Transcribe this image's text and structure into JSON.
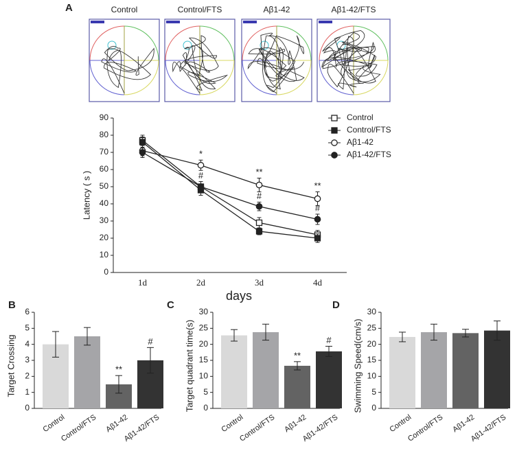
{
  "swim_paths": {
    "panel": "A",
    "labels": [
      "Control",
      "Control/FTS",
      "Aβ1-42",
      "Aβ1-42/FTS"
    ]
  },
  "chart_data": [
    {
      "type": "line",
      "x_label": "days",
      "y_label": "Latency ( s )",
      "categories": [
        "1d",
        "2d",
        "3d",
        "4d"
      ],
      "ylim": [
        0,
        90
      ],
      "yticks": [
        0,
        10,
        20,
        30,
        40,
        50,
        60,
        70,
        80,
        90
      ],
      "series": [
        {
          "name": "Control",
          "color": "#222222",
          "marker": "square-open",
          "values": [
            77,
            50,
            29,
            22
          ],
          "errors": [
            3,
            3,
            3,
            2.5
          ]
        },
        {
          "name": "Control/FTS",
          "color": "#222222",
          "marker": "square-filled",
          "values": [
            76,
            48,
            24,
            20
          ],
          "errors": [
            3,
            3,
            2,
            2.5
          ]
        },
        {
          "name": "Aβ1-42",
          "color": "#222222",
          "marker": "circle-open",
          "values": [
            71,
            62.5,
            51,
            43
          ],
          "errors": [
            3,
            3,
            4,
            4
          ]
        },
        {
          "name": "Aβ1-42/FTS",
          "color": "#222222",
          "marker": "circle-filled",
          "values": [
            70,
            50,
            38.5,
            31
          ],
          "errors": [
            3,
            3,
            2.5,
            3
          ]
        }
      ],
      "annotations": [
        {
          "text": "*",
          "x": "2d",
          "series": "Aβ1-42"
        },
        {
          "text": "**",
          "x": "3d",
          "series": "Aβ1-42"
        },
        {
          "text": "**",
          "x": "4d",
          "series": "Aβ1-42"
        },
        {
          "text": "#",
          "x": "2d",
          "series": "Aβ1-42/FTS"
        },
        {
          "text": "#",
          "x": "3d",
          "series": "Aβ1-42/FTS"
        },
        {
          "text": "#",
          "x": "4d",
          "series": "Aβ1-42/FTS"
        }
      ]
    },
    {
      "type": "bar",
      "panel": "B",
      "y_label": "Target Crossing",
      "categories": [
        "Control",
        "Control/FTS",
        "Aβ1-42",
        "Aβ1-42/FTS"
      ],
      "colors": [
        "#d9d9d9",
        "#a5a5a8",
        "#636363",
        "#333333"
      ],
      "values": [
        4.0,
        4.5,
        1.5,
        3.0
      ],
      "errors": [
        0.8,
        0.55,
        0.55,
        0.8
      ],
      "ylim": [
        0,
        6
      ],
      "yticks": [
        0,
        1,
        2,
        3,
        4,
        5,
        6
      ],
      "annotations": [
        {
          "text": "**",
          "x": "Aβ1-42"
        },
        {
          "text": "#",
          "x": "Aβ1-42/FTS"
        }
      ]
    },
    {
      "type": "bar",
      "panel": "C",
      "y_label": "Target quadrant time(s)",
      "categories": [
        "Control",
        "Control/FTS",
        "Aβ1-42",
        "Aβ1-42/FTS"
      ],
      "colors": [
        "#d9d9d9",
        "#a5a5a8",
        "#636363",
        "#333333"
      ],
      "values": [
        22.8,
        23.8,
        13.3,
        17.8
      ],
      "errors": [
        1.8,
        2.5,
        1.3,
        1.6
      ],
      "ylim": [
        0,
        30
      ],
      "yticks": [
        0,
        5,
        10,
        15,
        20,
        25,
        30
      ],
      "annotations": [
        {
          "text": "**",
          "x": "Aβ1-42"
        },
        {
          "text": "#",
          "x": "Aβ1-42/FTS"
        }
      ]
    },
    {
      "type": "bar",
      "panel": "D",
      "y_label": "Swimming Speed(cm/s)",
      "categories": [
        "Control",
        "Control/FTS",
        "Aβ1-42",
        "Aβ1-42/FTS"
      ],
      "colors": [
        "#d9d9d9",
        "#a5a5a8",
        "#636363",
        "#333333"
      ],
      "values": [
        22.3,
        23.8,
        23.5,
        24.3
      ],
      "errors": [
        1.5,
        2.5,
        1.2,
        3
      ],
      "ylim": [
        0,
        30
      ],
      "yticks": [
        0,
        5,
        10,
        15,
        20,
        25,
        30
      ],
      "annotations": []
    }
  ]
}
